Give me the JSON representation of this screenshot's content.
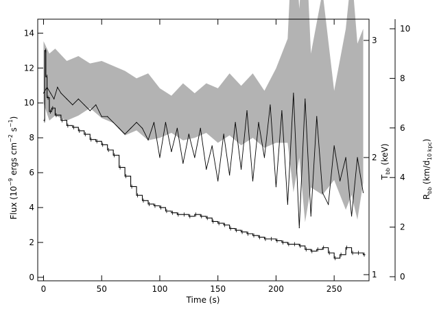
{
  "chart_data": {
    "type": "line",
    "xlabel": "Time (s)",
    "ylabel_left": "Flux (10^-9 ergs cm^-2 s^-1)",
    "ylabel_right_inner": "T_bb (keV)",
    "ylabel_right_outer": "R_bb (km/d_10 kpc)",
    "xlim": [
      -5,
      280
    ],
    "ylim_left": [
      -0.2,
      14.8
    ],
    "x_ticks": [
      0,
      50,
      100,
      150,
      200,
      250
    ],
    "y_ticks_left": [
      0,
      2,
      4,
      6,
      8,
      10,
      12,
      14
    ],
    "inner_axis_ticks": [
      1,
      2,
      3
    ],
    "outer_axis_ticks": [
      0,
      2,
      4,
      6,
      8,
      10
    ],
    "series": [
      {
        "role": "flux",
        "style": "black stepped line",
        "x": [
          0,
          1,
          2,
          3,
          5,
          7,
          10,
          15,
          20,
          25,
          30,
          35,
          40,
          45,
          50,
          55,
          60,
          65,
          70,
          75,
          80,
          85,
          90,
          95,
          100,
          105,
          110,
          115,
          120,
          125,
          130,
          135,
          140,
          145,
          150,
          155,
          160,
          165,
          170,
          175,
          180,
          185,
          190,
          195,
          200,
          205,
          210,
          215,
          220,
          225,
          230,
          235,
          240,
          245,
          250,
          255,
          260,
          265,
          270,
          275
        ],
        "values": [
          9.0,
          13.0,
          11.5,
          10.3,
          9.5,
          9.7,
          9.3,
          9.0,
          8.7,
          8.6,
          8.4,
          8.2,
          7.9,
          7.8,
          7.6,
          7.3,
          7.0,
          6.3,
          5.8,
          5.2,
          4.7,
          4.4,
          4.2,
          4.1,
          4.0,
          3.8,
          3.7,
          3.6,
          3.6,
          3.5,
          3.6,
          3.5,
          3.4,
          3.2,
          3.1,
          3.0,
          2.8,
          2.7,
          2.6,
          2.5,
          2.4,
          2.3,
          2.2,
          2.2,
          2.1,
          2.0,
          1.9,
          1.9,
          1.8,
          1.6,
          1.5,
          1.6,
          1.7,
          1.4,
          1.1,
          1.3,
          1.7,
          1.4,
          1.4,
          1.3
        ]
      },
      {
        "role": "kT_bb",
        "style": "thin black line",
        "x": [
          0,
          3,
          6,
          9,
          12,
          15,
          20,
          25,
          30,
          35,
          40,
          45,
          50,
          55,
          60,
          65,
          70,
          75,
          80,
          85,
          90,
          95,
          100,
          105,
          110,
          115,
          120,
          125,
          130,
          135,
          140,
          145,
          150,
          155,
          160,
          165,
          170,
          175,
          180,
          185,
          190,
          195,
          200,
          205,
          210,
          215,
          220,
          225,
          230,
          235,
          240,
          245,
          250,
          255,
          260,
          265,
          270,
          275
        ],
        "values": [
          2.55,
          2.6,
          2.55,
          2.5,
          2.6,
          2.55,
          2.5,
          2.45,
          2.5,
          2.45,
          2.4,
          2.45,
          2.35,
          2.35,
          2.3,
          2.25,
          2.2,
          2.25,
          2.3,
          2.25,
          2.15,
          2.3,
          2.0,
          2.3,
          2.05,
          2.25,
          1.95,
          2.2,
          2.0,
          2.25,
          1.9,
          2.1,
          1.8,
          2.2,
          1.85,
          2.3,
          1.9,
          2.4,
          1.8,
          2.3,
          2.0,
          2.45,
          1.75,
          2.4,
          1.6,
          2.55,
          1.4,
          2.5,
          1.5,
          2.35,
          1.7,
          1.6,
          2.1,
          1.8,
          2.0,
          1.5,
          2.0,
          1.7
        ]
      },
      {
        "role": "R_bb",
        "style": "grey uncertainty band",
        "x": [
          0,
          5,
          10,
          20,
          30,
          40,
          50,
          60,
          70,
          80,
          90,
          100,
          110,
          120,
          130,
          140,
          150,
          160,
          170,
          180,
          190,
          200,
          210,
          215,
          220,
          225,
          230,
          240,
          250,
          260,
          265,
          270,
          275
        ],
        "lower": [
          7.0,
          6.3,
          6.5,
          6.3,
          6.5,
          6.8,
          6.4,
          6.2,
          5.7,
          5.9,
          5.5,
          5.6,
          5.8,
          5.5,
          5.6,
          5.8,
          5.4,
          5.7,
          5.3,
          5.6,
          5.2,
          5.4,
          5.4,
          3.4,
          4.8,
          2.2,
          3.6,
          3.3,
          3.9,
          2.7,
          3.3,
          2.3,
          3.8
        ],
        "upper": [
          9.5,
          9.0,
          9.2,
          8.7,
          8.9,
          8.6,
          8.7,
          8.5,
          8.3,
          8.0,
          8.2,
          7.6,
          7.3,
          7.8,
          7.4,
          7.8,
          7.6,
          8.2,
          7.7,
          8.2,
          7.5,
          8.4,
          9.6,
          14.6,
          10.8,
          14.2,
          9.0,
          11.5,
          7.5,
          10.0,
          12.3,
          9.4,
          10.0
        ]
      }
    ]
  }
}
